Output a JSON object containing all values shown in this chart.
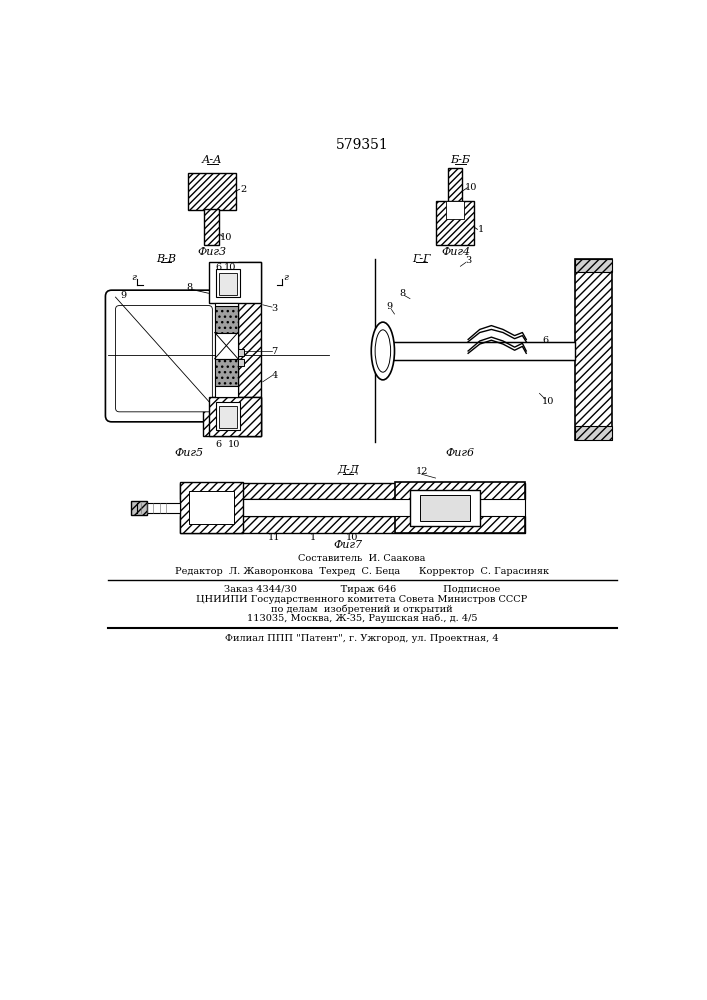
{
  "patent_number": "579351",
  "bg": "#ffffff",
  "lc": "#000000",
  "footer": [
    "Составитель  И. Саакова",
    "Редактор  Л. Жаворонкова  Техред  С. Беца      Корректор  С. Гарасиняк",
    "Заказ 4344/30              Тираж 646               Подписное",
    "ЦНИИПИ Государственного комитета Совета Министров СССР",
    "по делам  изобретений и открытий",
    "113035, Москва, Ж-35, Раушская наб., д. 4/5",
    "Филиал ППП \"Патент\", г. Ужгород, ул. Проектная, 4"
  ]
}
